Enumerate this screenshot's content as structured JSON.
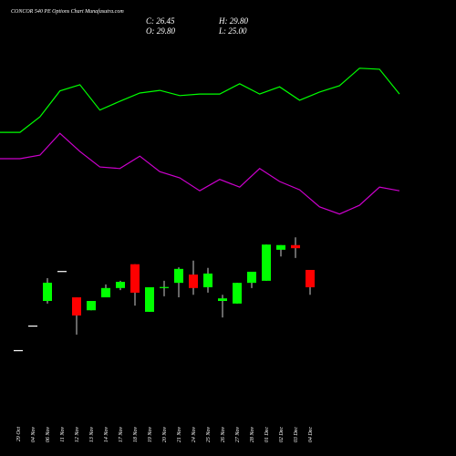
{
  "chart_data": {
    "type": "candlestick",
    "title": "CONCOR 540 PE Options Chart Munafasutra.com",
    "info_labels": [
      "C: 26.45",
      "H: 29.80",
      "O: 29.80",
      "L: 25.00"
    ],
    "categories": [
      "29 Oct",
      "04 Nov",
      "06 Nov",
      "11 Nov",
      "12 Nov",
      "13 Nov",
      "14 Nov",
      "17 Nov",
      "18 Nov",
      "19 Nov",
      "20 Nov",
      "21 Nov",
      "24 Nov",
      "25 Nov",
      "26 Nov",
      "27 Nov",
      "28 Nov",
      "01 Dec",
      "02 Dec",
      "03 Dec",
      "04 Dec"
    ],
    "open": [
      14.3,
      19.05,
      23.8,
      29.6,
      24.5,
      22.0,
      24.5,
      26.3,
      30.9,
      21.7,
      26.4,
      27.3,
      28.9,
      26.45,
      23.8,
      23.3,
      27.3,
      27.7,
      33.7,
      34.6,
      29.8
    ],
    "high": [
      14.3,
      19.05,
      28.2,
      29.6,
      24.5,
      23.8,
      27.0,
      27.7,
      30.9,
      26.45,
      27.7,
      30.3,
      31.6,
      30.2,
      25.0,
      27.3,
      29.45,
      34.7,
      34.6,
      36.1,
      29.8
    ],
    "low": [
      14.3,
      19.05,
      23.3,
      29.6,
      17.3,
      22.0,
      24.5,
      25.9,
      22.9,
      21.7,
      24.7,
      24.5,
      25.0,
      25.4,
      20.6,
      23.3,
      26.3,
      27.7,
      32.4,
      32.1,
      25.0
    ],
    "close": [
      14.3,
      19.05,
      27.33,
      29.6,
      21.0,
      23.8,
      26.3,
      27.5,
      25.4,
      26.45,
      26.5,
      30.0,
      26.3,
      29.1,
      24.3,
      27.3,
      29.45,
      34.7,
      34.6,
      34.0,
      26.45
    ],
    "up_color": "#00ff00",
    "down_color": "#ff0000",
    "series": [
      {
        "color": "#00ff00",
        "values": [
          56.4,
          56.4,
          59.4,
          64.4,
          65.6,
          60.7,
          62.4,
          64.0,
          64.5,
          63.5,
          63.8,
          63.8,
          65.8,
          63.8,
          65.2,
          62.6,
          64.2,
          65.4,
          68.8,
          68.6,
          63.8
        ]
      },
      {
        "color": "#cc00cc",
        "values": [
          51.3,
          51.3,
          52.0,
          56.2,
          52.7,
          49.7,
          49.4,
          51.8,
          48.8,
          47.6,
          45.1,
          47.3,
          45.8,
          49.4,
          46.9,
          45.3,
          42.0,
          40.6,
          42.3,
          45.8,
          45.1
        ]
      }
    ],
    "ylim": [
      -6.17,
      81.98
    ]
  }
}
